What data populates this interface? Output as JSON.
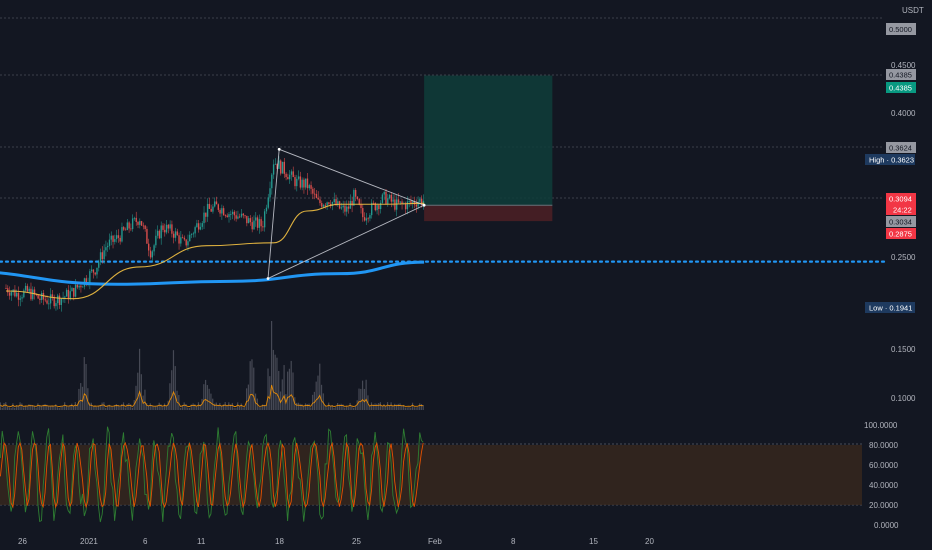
{
  "currency": "USDT",
  "colors": {
    "background": "#131722",
    "grid_dash": "#363a45",
    "candle_up": "#26a69a",
    "candle_down": "#ef5350",
    "ma_slow": "#2196f3",
    "ma_fast": "#f5c242",
    "support_dotted": "#2196f3",
    "target_zone": "#0f3d3a",
    "stop_zone": "#4a1f25",
    "volume": "#5d606b",
    "volume_ma": "#ff9800",
    "stoch_k": "#2e7d32",
    "stoch_d": "#e65100",
    "stoch_band": "#3b2a1e",
    "triangle_lines": "#d1d4dc"
  },
  "price_axis_ticks": [
    "0.4500",
    "0.4000",
    "0.2500",
    "0.1500",
    "0.1000"
  ],
  "oscillator_axis_ticks": [
    "100.0000",
    "80.0000",
    "60.0000",
    "40.0000",
    "20.0000",
    "0.0000"
  ],
  "time_axis_ticks": [
    "26",
    "2021",
    "6",
    "11",
    "18",
    "25",
    "Feb",
    "8",
    "15",
    "20"
  ],
  "price_labels": {
    "top_clipped": "0.5000",
    "target_grey": "0.4385",
    "target_green": "0.4385",
    "resistance": "0.3624",
    "high": "High · 0.3623",
    "current": "0.3094",
    "countdown": "24:22",
    "entry": "0.3034",
    "stop": "0.2875",
    "low": "Low · 0.1941"
  },
  "chart_data": {
    "type": "candlestick",
    "currency": "USDT",
    "price_range": [
      0.07,
      0.51
    ],
    "oscillator_range": [
      0,
      100
    ],
    "x_range_days": [
      "Dec 23",
      "Feb 24"
    ],
    "price_path_days": [
      0,
      1,
      2,
      3,
      4,
      5,
      6,
      7,
      8,
      9,
      10,
      11,
      12,
      13,
      14,
      15,
      16,
      17,
      18,
      19,
      20,
      21,
      22,
      23,
      24,
      25,
      26,
      27,
      28,
      29,
      30,
      30.6,
      31.2,
      32,
      33,
      34,
      35,
      36,
      37,
      37.5
    ],
    "price_path": [
      0.218,
      0.212,
      0.214,
      0.207,
      0.205,
      0.208,
      0.214,
      0.226,
      0.238,
      0.262,
      0.27,
      0.281,
      0.291,
      0.255,
      0.282,
      0.276,
      0.263,
      0.281,
      0.298,
      0.303,
      0.296,
      0.292,
      0.286,
      0.283,
      0.35,
      0.34,
      0.328,
      0.325,
      0.306,
      0.31,
      0.3,
      0.299,
      0.313,
      0.292,
      0.303,
      0.312,
      0.304,
      0.305,
      0.309,
      0.309
    ],
    "ma_slow": {
      "x": [
        -5,
        10,
        20,
        30,
        37.5
      ],
      "y": [
        0.236,
        0.222,
        0.225,
        0.233,
        0.245
      ]
    },
    "ma_fast": {
      "x": [
        0,
        6,
        12,
        18,
        24,
        27,
        30,
        34,
        37.5
      ],
      "y": [
        0.215,
        0.207,
        0.24,
        0.262,
        0.265,
        0.298,
        0.305,
        0.305,
        0.306
      ]
    },
    "support_level": 0.2455,
    "triangle": {
      "x": [
        23.5,
        24.5,
        37.5
      ],
      "y": [
        0.228,
        0.362,
        0.304
      ]
    },
    "position": {
      "entry": 0.3034,
      "target": 0.4385,
      "stop": 0.2875,
      "x_start": 37.5,
      "x_end": 49
    },
    "high": 0.3623,
    "low": 0.1941,
    "volume_spike_days": [
      7,
      12,
      15,
      18,
      22,
      24,
      25.5,
      28,
      32
    ],
    "stochastic_overbought": 80,
    "stochastic_oversold": 20
  }
}
